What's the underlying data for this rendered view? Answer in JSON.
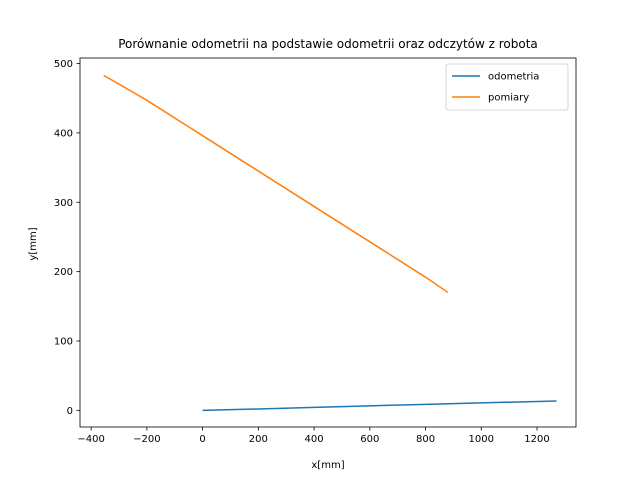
{
  "chart_data": {
    "type": "line",
    "title": "Porównanie odometrii na podstawie odometrii oraz odczytów z robota",
    "xlabel": "x[mm]",
    "ylabel": "y[mm]",
    "xlim": [
      -440,
      1340
    ],
    "ylim": [
      -24,
      508
    ],
    "xticks": [
      -400,
      -200,
      0,
      200,
      400,
      600,
      800,
      1000,
      1200
    ],
    "yticks": [
      0,
      100,
      200,
      300,
      400,
      500
    ],
    "grid": false,
    "legend_position": "top-right",
    "series": [
      {
        "name": "odometria",
        "color": "#1f77b4",
        "x": [
          0,
          200,
          400,
          600,
          800,
          1000,
          1270
        ],
        "y": [
          0,
          2,
          4.3,
          6.5,
          8.7,
          10.8,
          13.5
        ]
      },
      {
        "name": "pomiary",
        "color": "#ff7f0e",
        "x": [
          -355,
          -200,
          0,
          200,
          400,
          600,
          800,
          880
        ],
        "y": [
          483,
          447,
          396,
          345,
          294,
          243,
          192,
          170
        ]
      }
    ]
  }
}
